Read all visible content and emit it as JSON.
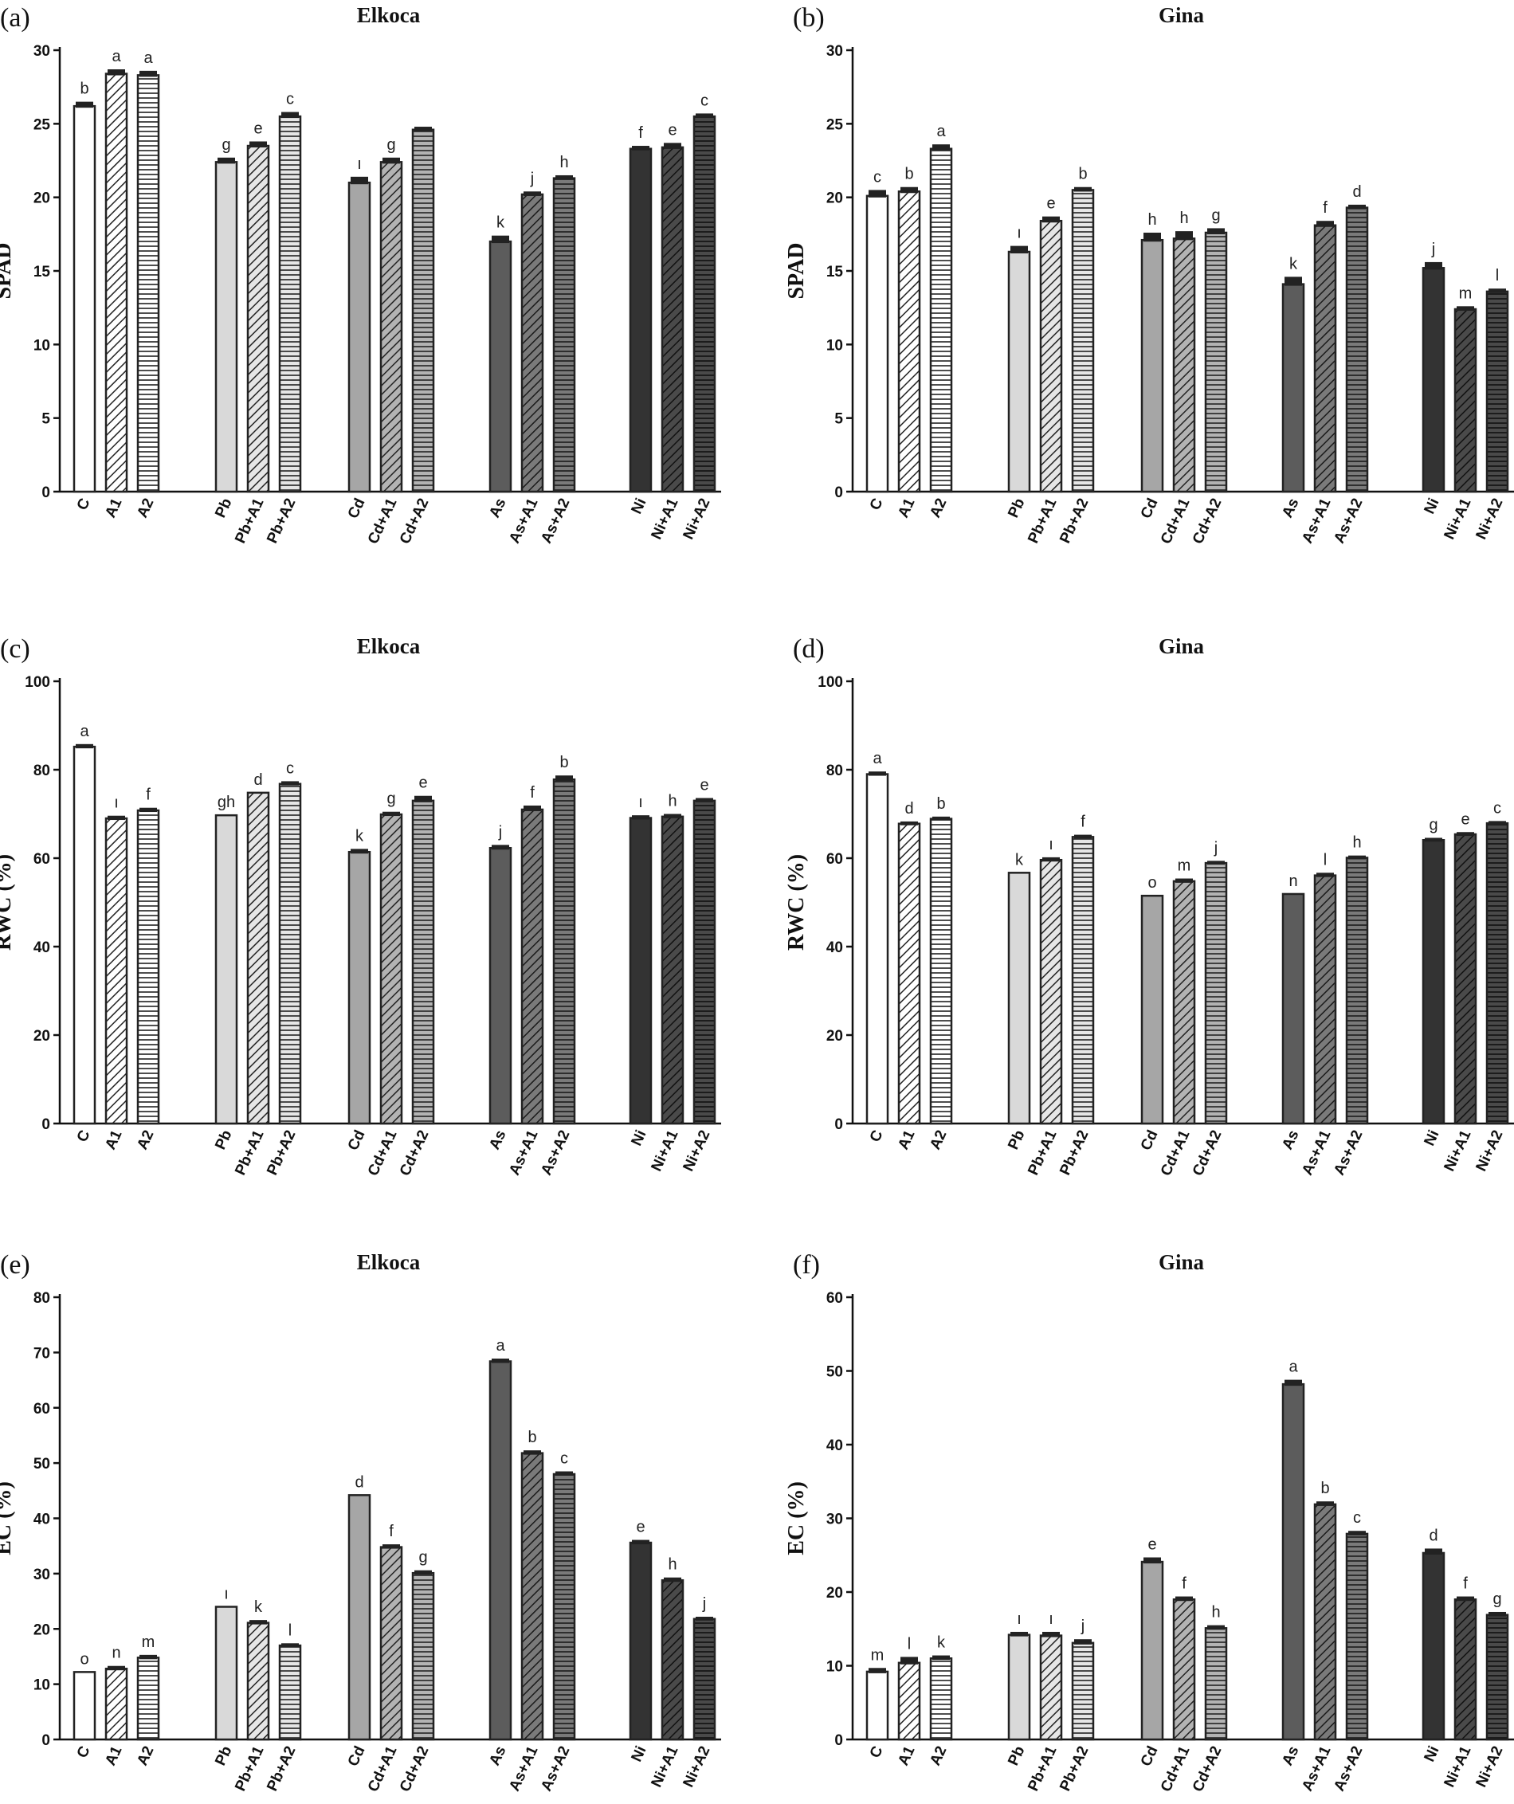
{
  "categories": [
    "C",
    "A1",
    "A2",
    "Pb",
    "Pb+A1",
    "Pb+A2",
    "Cd",
    "Cd+A1",
    "Cd+A2",
    "As",
    "As+A1",
    "As+A2",
    "Ni",
    "Ni+A1",
    "Ni+A2"
  ],
  "colors": {
    "C": "#ffffff",
    "Pb": "#d9d9d9",
    "Cd": "#a6a6a6",
    "As": "#5c5c5c",
    "Ni": "#333333",
    "edge": "#222222"
  },
  "chart_data": [
    {
      "type": "bar",
      "panel": "(a)",
      "title": "Elkoca",
      "ylabel": "SPAD",
      "ylim": [
        0,
        30
      ],
      "yticks": [
        0,
        5,
        10,
        15,
        20,
        25,
        30
      ],
      "categories": [
        "C",
        "A1",
        "A2",
        "Pb",
        "Pb+A1",
        "Pb+A2",
        "Cd",
        "Cd+A1",
        "Cd+A2",
        "As",
        "As+A1",
        "As+A2",
        "Ni",
        "Ni+A1",
        "Ni+A2"
      ],
      "values": [
        26.2,
        28.4,
        28.3,
        22.4,
        23.5,
        25.5,
        21.0,
        22.4,
        24.6,
        17.0,
        20.2,
        21.3,
        23.3,
        23.4,
        25.5
      ],
      "errors": [
        0.3,
        0.3,
        0.3,
        0.3,
        0.3,
        0.3,
        0.4,
        0.3,
        0.2,
        0.4,
        0.2,
        0.2,
        0.2,
        0.3,
        0.2
      ],
      "letters": [
        "b",
        "a",
        "a",
        "g",
        "e",
        "c",
        "ı",
        "g",
        "",
        "k",
        "j",
        "h",
        "f",
        "e",
        "c"
      ]
    },
    {
      "type": "bar",
      "panel": "(b)",
      "title": "Gina",
      "ylabel": "SPAD",
      "ylim": [
        0,
        30
      ],
      "yticks": [
        0,
        5,
        10,
        15,
        20,
        25,
        30
      ],
      "categories": [
        "C",
        "A1",
        "A2",
        "Pb",
        "Pb+A1",
        "Pb+A2",
        "Cd",
        "Cd+A1",
        "Cd+A2",
        "As",
        "As+A1",
        "As+A2",
        "Ni",
        "Ni+A1",
        "Ni+A2"
      ],
      "values": [
        20.1,
        20.4,
        23.3,
        16.3,
        18.4,
        20.5,
        17.1,
        17.2,
        17.6,
        14.1,
        18.1,
        19.3,
        15.2,
        12.4,
        13.6
      ],
      "errors": [
        0.4,
        0.3,
        0.3,
        0.4,
        0.3,
        0.2,
        0.5,
        0.5,
        0.3,
        0.5,
        0.3,
        0.2,
        0.4,
        0.2,
        0.2
      ],
      "letters": [
        "c",
        "b",
        "a",
        "ı",
        "e",
        "b",
        "h",
        "h",
        "g",
        "k",
        "f",
        "d",
        "j",
        "m",
        "l"
      ]
    },
    {
      "type": "bar",
      "panel": "(c)",
      "title": "Elkoca",
      "ylabel": "RWC (%)",
      "ylim": [
        0,
        100
      ],
      "yticks": [
        0,
        20,
        40,
        60,
        80,
        100
      ],
      "categories": [
        "C",
        "A1",
        "A2",
        "Pb",
        "Pb+A1",
        "Pb+A2",
        "Cd",
        "Cd+A1",
        "Cd+A2",
        "As",
        "As+A1",
        "As+A2",
        "Ni",
        "Ni+A1",
        "Ni+A2"
      ],
      "values": [
        85.2,
        69.0,
        70.8,
        69.7,
        74.8,
        76.8,
        61.4,
        69.9,
        73.0,
        62.3,
        71.0,
        77.8,
        69.1,
        69.4,
        73.0
      ],
      "errors": [
        0.6,
        0.6,
        0.6,
        0.0,
        0.0,
        0.6,
        0.7,
        0.6,
        1.1,
        0.7,
        0.9,
        0.9,
        0.6,
        0.6,
        0.6
      ],
      "letters": [
        "a",
        "ı",
        "f",
        "gh",
        "d",
        "c",
        "k",
        "g",
        "e",
        "j",
        "f",
        "b",
        "ı",
        "h",
        "e"
      ]
    },
    {
      "type": "bar",
      "panel": "(d)",
      "title": "Gina",
      "ylabel": "RWC (%)",
      "ylim": [
        0,
        100
      ],
      "yticks": [
        0,
        20,
        40,
        60,
        80,
        100
      ],
      "categories": [
        "C",
        "A1",
        "A2",
        "Pb",
        "Pb+A1",
        "Pb+A2",
        "Cd",
        "Cd+A1",
        "Cd+A2",
        "As",
        "As+A1",
        "As+A2",
        "Ni",
        "Ni+A1",
        "Ni+A2"
      ],
      "values": [
        79.0,
        67.8,
        68.9,
        56.7,
        59.6,
        64.8,
        51.5,
        54.8,
        58.9,
        51.9,
        56.1,
        60.1,
        64.1,
        65.4,
        67.9
      ],
      "errors": [
        0.6,
        0.5,
        0.5,
        0.0,
        0.6,
        0.5,
        0.0,
        0.6,
        0.5,
        0.0,
        0.6,
        0.5,
        0.5,
        0.5,
        0.5
      ],
      "letters": [
        "a",
        "d",
        "b",
        "k",
        "ı",
        "f",
        "o",
        "m",
        "j",
        "n",
        "l",
        "h",
        "g",
        "e",
        "c"
      ]
    },
    {
      "type": "bar",
      "panel": "(e)",
      "title": "Elkoca",
      "ylabel": "EC (%)",
      "ylim": [
        0,
        80
      ],
      "yticks": [
        0,
        10,
        20,
        30,
        40,
        50,
        60,
        70,
        80
      ],
      "categories": [
        "C",
        "A1",
        "A2",
        "Pb",
        "Pb+A1",
        "Pb+A2",
        "Cd",
        "Cd+A1",
        "Cd+A2",
        "As",
        "As+A1",
        "As+A2",
        "Ni",
        "Ni+A1",
        "Ni+A2"
      ],
      "values": [
        12.2,
        12.8,
        14.8,
        24.0,
        21.1,
        17.0,
        44.2,
        34.8,
        30.1,
        68.4,
        51.8,
        48.0,
        35.6,
        28.8,
        21.8
      ],
      "errors": [
        0.0,
        0.5,
        0.5,
        0.0,
        0.5,
        0.4,
        0.0,
        0.5,
        0.5,
        0.5,
        0.5,
        0.5,
        0.5,
        0.5,
        0.4
      ],
      "letters": [
        "o",
        "n",
        "m",
        "ı",
        "k",
        "l",
        "d",
        "f",
        "g",
        "a",
        "b",
        "c",
        "e",
        "h",
        "j"
      ]
    },
    {
      "type": "bar",
      "panel": "(f)",
      "title": "Gina",
      "ylabel": "EC (%)",
      "ylim": [
        0,
        60
      ],
      "yticks": [
        0,
        10,
        20,
        30,
        40,
        50,
        60
      ],
      "categories": [
        "C",
        "A1",
        "A2",
        "Pb",
        "Pb+A1",
        "Pb+A2",
        "Cd",
        "Cd+A1",
        "Cd+A2",
        "As",
        "As+A1",
        "As+A2",
        "Ni",
        "Ni+A1",
        "Ni+A2"
      ],
      "values": [
        9.2,
        10.4,
        11.0,
        14.2,
        14.1,
        13.1,
        24.1,
        19.0,
        15.1,
        48.2,
        31.9,
        27.9,
        25.3,
        19.0,
        16.9
      ],
      "errors": [
        0.5,
        0.8,
        0.4,
        0.4,
        0.5,
        0.5,
        0.6,
        0.4,
        0.4,
        0.6,
        0.4,
        0.4,
        0.6,
        0.4,
        0.4
      ],
      "letters": [
        "m",
        "l",
        "k",
        "ı",
        "ı",
        "j",
        "e",
        "f",
        "h",
        "a",
        "b",
        "c",
        "d",
        "f",
        "g"
      ]
    }
  ]
}
